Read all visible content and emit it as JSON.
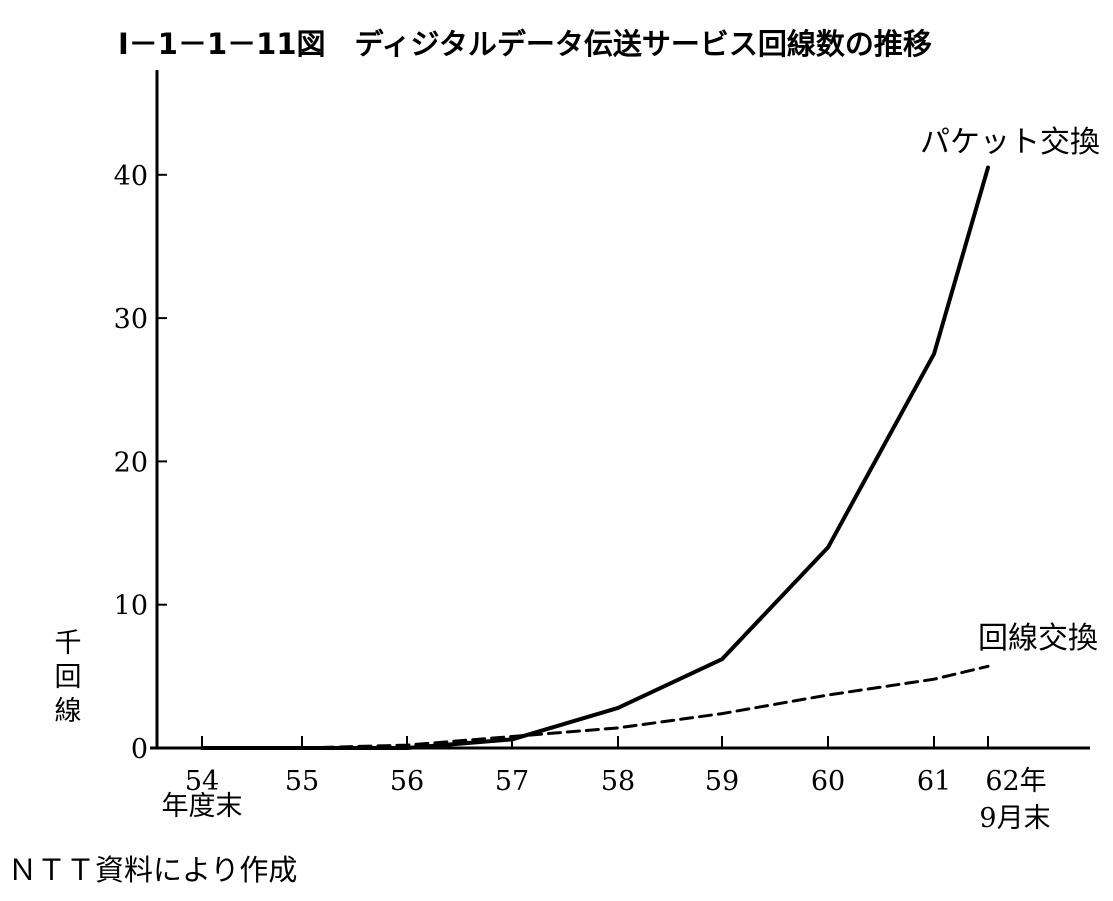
{
  "chart_data": {
    "type": "line",
    "title": "Ⅰ－1－1－11図　ディジタルデータ伝送サービス回線数の推移",
    "ylabel": "千回線",
    "ylim": [
      0,
      45
    ],
    "yticks": [
      0,
      10,
      20,
      30,
      40
    ],
    "ytick_labels": [
      "0",
      "10",
      "20",
      "30",
      "40"
    ],
    "grid": false,
    "x_categories": [
      "54",
      "55",
      "56",
      "57",
      "58",
      "59",
      "60",
      "61",
      "62年"
    ],
    "x_first_sub": "年度末",
    "x_last_sub": "9月末",
    "series": [
      {
        "name": "パケット交換",
        "style": "solid",
        "color": "#000000",
        "x": [
          "54",
          "55",
          "56",
          "57",
          "58",
          "59",
          "60",
          "61",
          "62年"
        ],
        "values": [
          0.0,
          0.0,
          0.0,
          0.6,
          2.8,
          6.2,
          14.0,
          27.5,
          40.5
        ]
      },
      {
        "name": "回線交換",
        "style": "dashed",
        "color": "#000000",
        "x": [
          "55",
          "56",
          "57",
          "58",
          "59",
          "60",
          "61",
          "62年"
        ],
        "values": [
          0.0,
          0.2,
          0.8,
          1.4,
          2.4,
          3.7,
          4.8,
          5.7
        ]
      }
    ]
  },
  "source_note": "ＮＴＴ資料により作成"
}
